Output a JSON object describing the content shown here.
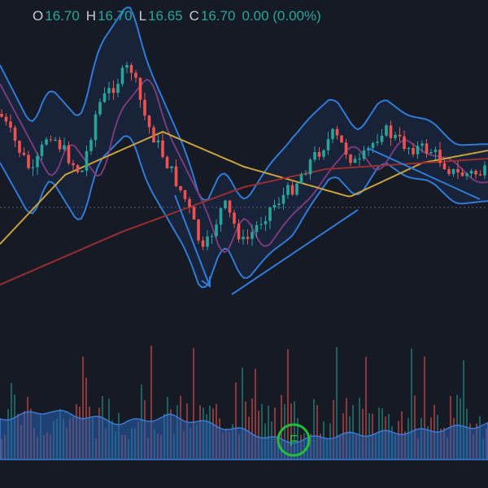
{
  "legend": {
    "items": [
      {
        "label": "O",
        "value": "16.70"
      },
      {
        "label": "H",
        "value": "16.70"
      },
      {
        "label": "L",
        "value": "16.65"
      },
      {
        "label": "C",
        "value": "16.70"
      }
    ],
    "change": "0.00 (0.00%)"
  },
  "marker": "F"
}
